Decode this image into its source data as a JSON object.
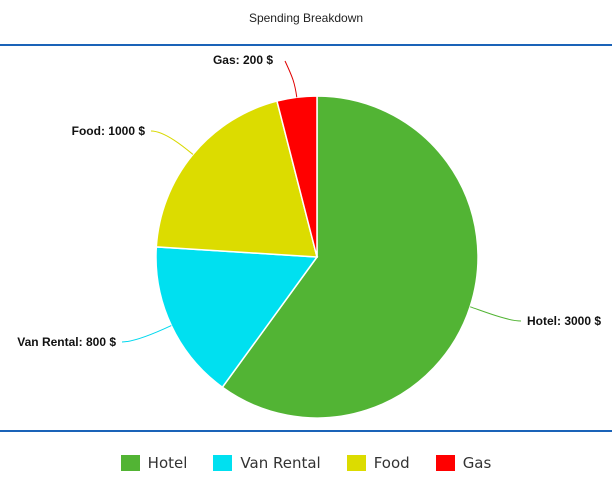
{
  "chart_data": {
    "type": "pie",
    "title": "Spending Breakdown",
    "slices": [
      {
        "name": "Hotel",
        "value": 3000,
        "label": "Hotel: 3000 $",
        "color": "#52b434",
        "leader": "#52b434"
      },
      {
        "name": "Van Rental",
        "value": 800,
        "label": "Van Rental: 800 $",
        "color": "#00e0f0",
        "leader": "#00d8ee"
      },
      {
        "name": "Food",
        "value": 1000,
        "label": "Food: 1000 $",
        "color": "#dcdc00",
        "leader": "#d9d900"
      },
      {
        "name": "Gas",
        "value": 200,
        "label": "Gas: 200 $",
        "color": "#ff0000",
        "leader": "#e00000"
      }
    ],
    "legend": {
      "position": "bottom"
    }
  }
}
